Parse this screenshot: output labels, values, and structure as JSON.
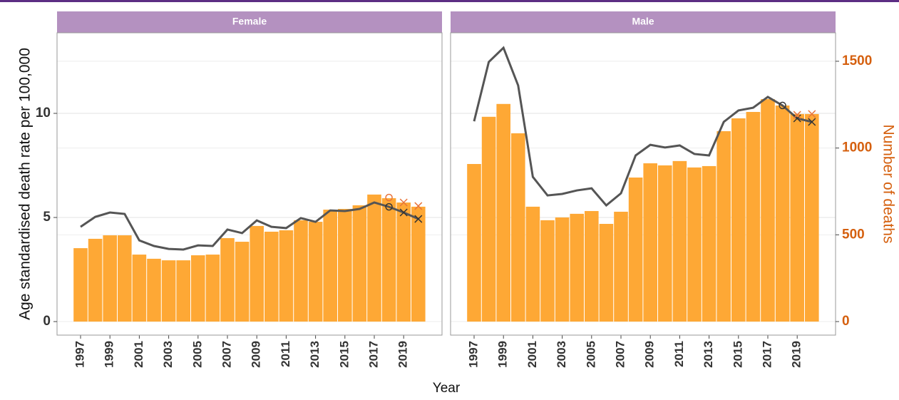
{
  "chart_data": {
    "type": "bar",
    "x_label": "Year",
    "y_label": "Age standardised death rate per 100,000",
    "y2_label": "Number of deaths",
    "categories": [
      1997,
      1998,
      1999,
      2000,
      2001,
      2002,
      2003,
      2004,
      2005,
      2006,
      2007,
      2008,
      2009,
      2010,
      2011,
      2012,
      2013,
      2014,
      2015,
      2016,
      2017,
      2018,
      2019,
      2020
    ],
    "xticks": [
      1997,
      1999,
      2001,
      2003,
      2005,
      2007,
      2009,
      2011,
      2013,
      2015,
      2017,
      2019
    ],
    "ylim": [
      -0.65,
      13.87
    ],
    "yticks": [
      0,
      5,
      10
    ],
    "y2lim": [
      -78,
      1664
    ],
    "y2ticks": [
      0,
      500,
      1000,
      1500
    ],
    "grid": true,
    "strip_color": "#b491c0",
    "axis2_color": "#d5600f",
    "panels": [
      {
        "title": "Female",
        "series": [
          {
            "type": "bar",
            "axis": "y2",
            "color": "#fea835",
            "values": [
              423,
              477,
              497,
              497,
              386,
              362,
              353,
              353,
              382,
              386,
              481,
              460,
              551,
              518,
              526,
              584,
              575,
              645,
              649,
              670,
              732,
              711,
              686,
              662
            ]
          },
          {
            "type": "line",
            "axis": "y",
            "color": "#555555",
            "values": [
              4.55,
              5.03,
              5.24,
              5.17,
              3.9,
              3.63,
              3.49,
              3.46,
              3.66,
              3.63,
              4.42,
              4.25,
              4.86,
              4.55,
              4.49,
              4.97,
              4.79,
              5.34,
              5.31,
              5.41,
              5.72,
              5.51,
              5.24,
              4.93
            ]
          },
          {
            "type": "scatter",
            "marker": "circle",
            "axis": "y",
            "color": "#333333",
            "values": [
              null,
              null,
              null,
              null,
              null,
              null,
              null,
              null,
              null,
              null,
              null,
              null,
              null,
              null,
              null,
              null,
              null,
              null,
              null,
              null,
              null,
              5.51,
              null,
              null
            ]
          },
          {
            "type": "scatter",
            "marker": "cross",
            "axis": "y",
            "color": "#333333",
            "values": [
              null,
              null,
              null,
              null,
              null,
              null,
              null,
              null,
              null,
              null,
              null,
              null,
              null,
              null,
              null,
              null,
              null,
              null,
              null,
              null,
              null,
              null,
              5.24,
              4.93
            ]
          },
          {
            "type": "scatter",
            "marker": "circle",
            "axis": "y",
            "color": "#e8743b",
            "values": [
              null,
              null,
              null,
              null,
              null,
              null,
              null,
              null,
              null,
              null,
              null,
              null,
              null,
              null,
              null,
              null,
              null,
              null,
              null,
              null,
              null,
              5.96,
              null,
              null
            ]
          },
          {
            "type": "scatter",
            "marker": "cross",
            "axis": "y",
            "color": "#e8743b",
            "values": [
              null,
              null,
              null,
              null,
              null,
              null,
              null,
              null,
              null,
              null,
              null,
              null,
              null,
              null,
              null,
              null,
              null,
              null,
              null,
              null,
              null,
              null,
              5.72,
              5.55
            ]
          }
        ]
      },
      {
        "title": "Male",
        "series": [
          {
            "type": "bar",
            "axis": "y2",
            "color": "#fea835",
            "values": [
              908,
              1180,
              1254,
              1085,
              662,
              584,
              600,
              621,
              637,
              563,
              633,
              830,
              912,
              900,
              925,
              888,
              896,
              1097,
              1171,
              1208,
              1282,
              1245,
              1196,
              1196
            ]
          },
          {
            "type": "line",
            "axis": "y",
            "color": "#555555",
            "values": [
              9.62,
              12.47,
              13.15,
              11.34,
              6.95,
              6.06,
              6.13,
              6.3,
              6.4,
              5.58,
              6.16,
              7.98,
              8.49,
              8.36,
              8.46,
              8.05,
              7.98,
              9.59,
              10.14,
              10.27,
              10.79,
              10.38,
              9.76,
              9.59
            ]
          },
          {
            "type": "scatter",
            "marker": "circle",
            "axis": "y",
            "color": "#333333",
            "values": [
              null,
              null,
              null,
              null,
              null,
              null,
              null,
              null,
              null,
              null,
              null,
              null,
              null,
              null,
              null,
              null,
              null,
              null,
              null,
              null,
              null,
              10.38,
              null,
              null
            ]
          },
          {
            "type": "scatter",
            "marker": "cross",
            "axis": "y",
            "color": "#333333",
            "values": [
              null,
              null,
              null,
              null,
              null,
              null,
              null,
              null,
              null,
              null,
              null,
              null,
              null,
              null,
              null,
              null,
              null,
              null,
              null,
              null,
              null,
              null,
              9.76,
              9.59
            ]
          },
          {
            "type": "scatter",
            "marker": "cross",
            "axis": "y",
            "color": "#e8743b",
            "values": [
              null,
              null,
              null,
              null,
              null,
              null,
              null,
              null,
              null,
              null,
              null,
              null,
              null,
              null,
              null,
              null,
              null,
              null,
              null,
              null,
              null,
              null,
              9.93,
              9.97
            ]
          }
        ]
      }
    ]
  }
}
